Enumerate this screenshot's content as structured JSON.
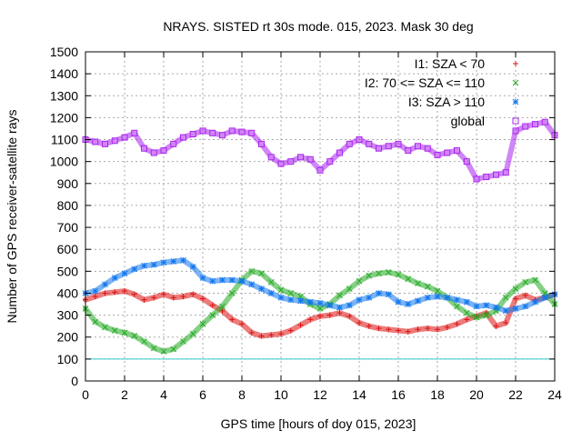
{
  "chart_data": {
    "type": "scatter",
    "title": "NRAYS. SISTED rt 30s mode. 015, 2023. Mask 30 deg",
    "xlabel": "GPS time [hours of doy 015, 2023]",
    "ylabel": "Number of GPS receiver-satellite rays",
    "xlim": [
      0,
      24
    ],
    "ylim": [
      0,
      1500
    ],
    "xticks": [
      0,
      2,
      4,
      6,
      8,
      10,
      12,
      14,
      16,
      18,
      20,
      22,
      24
    ],
    "yticks": [
      0,
      100,
      200,
      300,
      400,
      500,
      600,
      700,
      800,
      900,
      1000,
      1100,
      1200,
      1300,
      1400,
      1500
    ],
    "grid": true,
    "legend_position": "top-right",
    "reference_line": {
      "y": 100,
      "color": "#33cccc"
    },
    "series": [
      {
        "name": "I1: SZA < 70",
        "marker": "+",
        "color": "#dd1111",
        "x": [
          0,
          0.5,
          1,
          1.5,
          2,
          2.5,
          3,
          3.5,
          4,
          4.5,
          5,
          5.5,
          6,
          6.5,
          7,
          7.5,
          8,
          8.5,
          9,
          9.5,
          10,
          10.5,
          11,
          11.5,
          12,
          12.5,
          13,
          13.5,
          14,
          14.5,
          15,
          15.5,
          16,
          16.5,
          17,
          17.5,
          18,
          18.5,
          19,
          19.5,
          20,
          20.5,
          21,
          21.5,
          22,
          22.5,
          23,
          23.5,
          24
        ],
        "values": [
          370,
          385,
          400,
          405,
          410,
          395,
          370,
          380,
          395,
          380,
          385,
          395,
          375,
          345,
          320,
          280,
          260,
          220,
          205,
          210,
          215,
          230,
          255,
          280,
          295,
          300,
          310,
          295,
          265,
          250,
          240,
          235,
          230,
          225,
          235,
          240,
          235,
          245,
          260,
          280,
          295,
          310,
          250,
          265,
          375,
          390,
          370,
          380,
          395
        ]
      },
      {
        "name": "I2: 70 <= SZA <= 110",
        "marker": "x",
        "color": "#22aa22",
        "x": [
          0,
          0.5,
          1,
          1.5,
          2,
          2.5,
          3,
          3.5,
          4,
          4.5,
          5,
          5.5,
          6,
          6.5,
          7,
          7.5,
          8,
          8.5,
          9,
          9.5,
          10,
          10.5,
          11,
          11.5,
          12,
          12.5,
          13,
          13.5,
          14,
          14.5,
          15,
          15.5,
          16,
          16.5,
          17,
          17.5,
          18,
          18.5,
          19,
          19.5,
          20,
          20.5,
          21,
          21.5,
          22,
          22.5,
          23,
          23.5,
          24
        ],
        "values": [
          330,
          270,
          245,
          230,
          220,
          205,
          180,
          150,
          135,
          145,
          180,
          215,
          260,
          300,
          340,
          400,
          460,
          500,
          490,
          450,
          415,
          400,
          385,
          350,
          330,
          350,
          390,
          420,
          455,
          480,
          490,
          495,
          485,
          465,
          445,
          430,
          410,
          380,
          340,
          310,
          290,
          300,
          320,
          380,
          420,
          450,
          460,
          400,
          350
        ]
      },
      {
        "name": "I3: SZA > 110",
        "marker": "*",
        "color": "#1177ee",
        "x": [
          0,
          0.5,
          1,
          1.5,
          2,
          2.5,
          3,
          3.5,
          4,
          4.5,
          5,
          5.5,
          6,
          6.5,
          7,
          7.5,
          8,
          8.5,
          9,
          9.5,
          10,
          10.5,
          11,
          11.5,
          12,
          12.5,
          13,
          13.5,
          14,
          14.5,
          15,
          15.5,
          16,
          16.5,
          17,
          17.5,
          18,
          18.5,
          19,
          19.5,
          20,
          20.5,
          21,
          21.5,
          22,
          22.5,
          23,
          23.5,
          24
        ],
        "values": [
          400,
          410,
          440,
          470,
          490,
          510,
          525,
          530,
          540,
          545,
          550,
          520,
          470,
          455,
          460,
          460,
          455,
          440,
          420,
          400,
          380,
          370,
          365,
          360,
          355,
          345,
          335,
          345,
          370,
          380,
          400,
          395,
          360,
          350,
          365,
          380,
          385,
          380,
          370,
          360,
          340,
          345,
          335,
          320,
          330,
          340,
          360,
          380,
          395
        ]
      },
      {
        "name": "global",
        "marker": "square",
        "color": "#aa22ee",
        "x": [
          0,
          0.5,
          1,
          1.5,
          2,
          2.5,
          3,
          3.5,
          4,
          4.5,
          5,
          5.5,
          6,
          6.5,
          7,
          7.5,
          8,
          8.5,
          9,
          9.5,
          10,
          10.5,
          11,
          11.5,
          12,
          12.5,
          13,
          13.5,
          14,
          14.5,
          15,
          15.5,
          16,
          16.5,
          17,
          17.5,
          18,
          18.5,
          19,
          19.5,
          20,
          20.5,
          21,
          21.5,
          22,
          22.5,
          23,
          23.5,
          24
        ],
        "values": [
          1100,
          1090,
          1080,
          1095,
          1110,
          1130,
          1060,
          1040,
          1050,
          1080,
          1110,
          1125,
          1140,
          1130,
          1120,
          1140,
          1135,
          1130,
          1080,
          1020,
          990,
          1000,
          1020,
          1010,
          960,
          1000,
          1040,
          1080,
          1100,
          1080,
          1060,
          1070,
          1080,
          1050,
          1070,
          1060,
          1030,
          1040,
          1050,
          1000,
          920,
          930,
          940,
          950,
          1140,
          1160,
          1170,
          1180,
          1120
        ]
      }
    ]
  }
}
